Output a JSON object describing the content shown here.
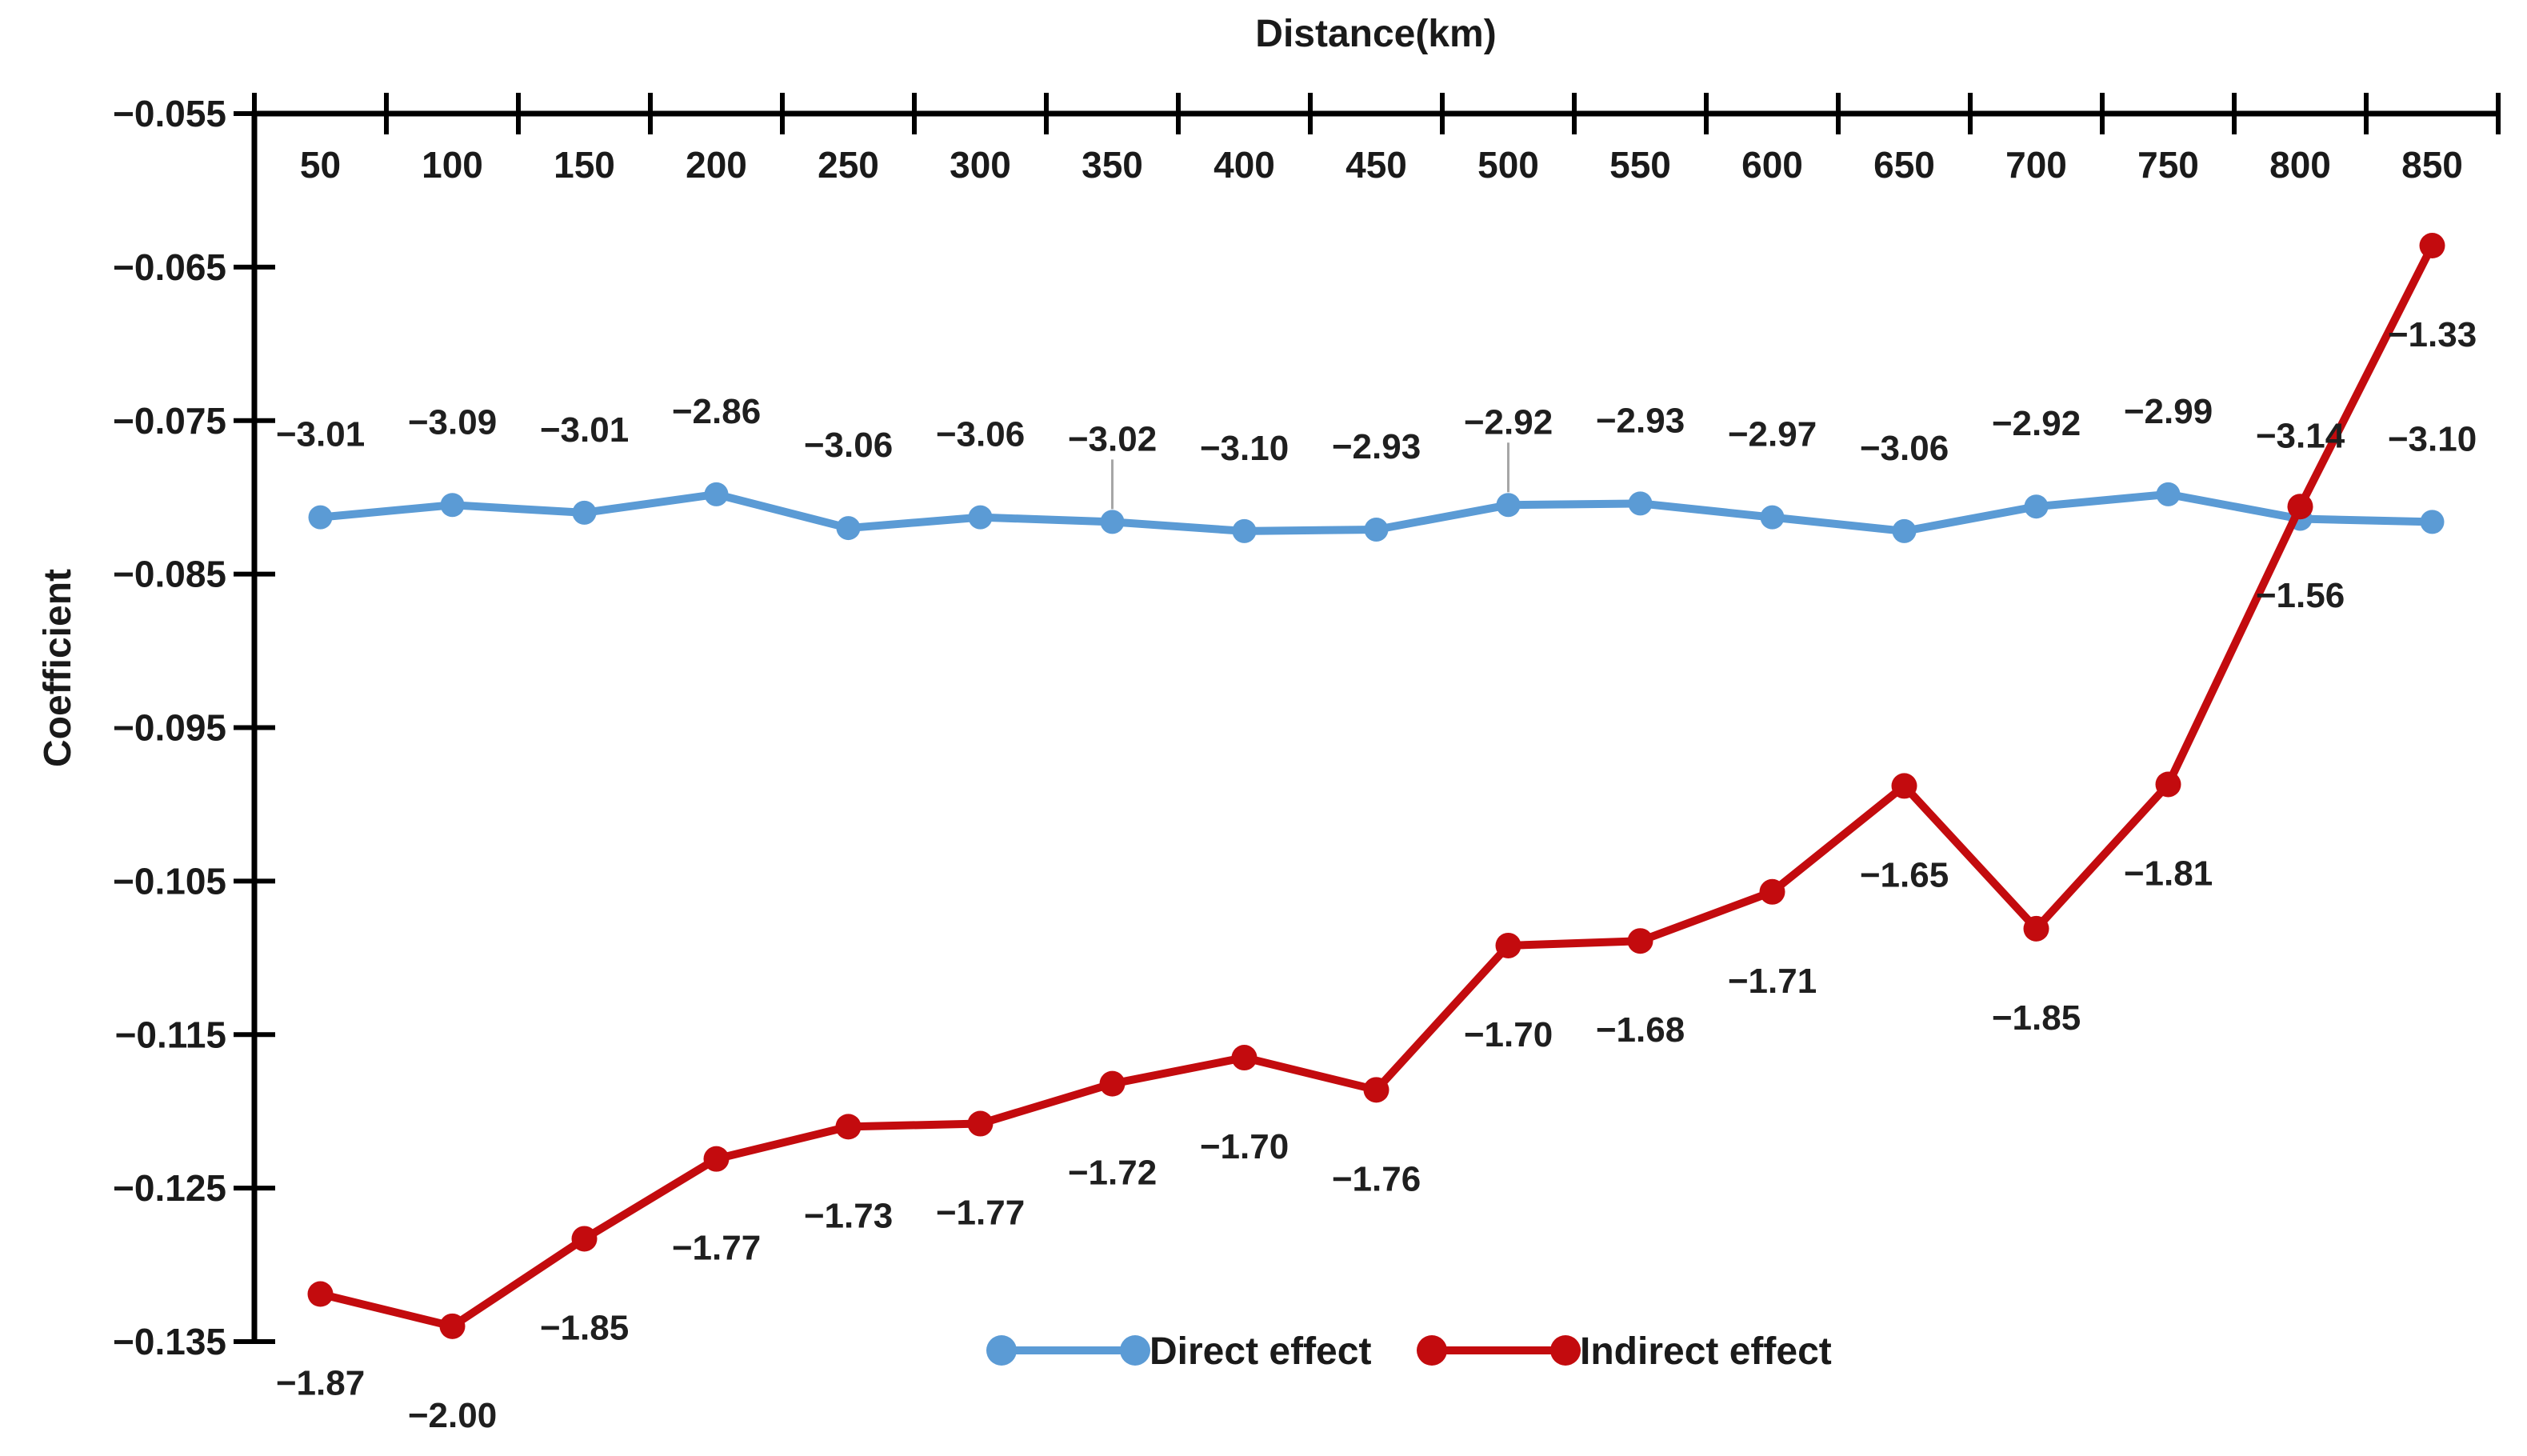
{
  "chart_data": {
    "type": "line",
    "title": "Distance(km)",
    "xlabel": "Distance(km)",
    "ylabel": "Coefficient",
    "x": [
      50,
      100,
      150,
      200,
      250,
      300,
      350,
      400,
      450,
      500,
      550,
      600,
      650,
      700,
      750,
      800,
      850
    ],
    "xtick_labels": [
      "50",
      "100",
      "150",
      "200",
      "250",
      "300",
      "350",
      "400",
      "450",
      "500",
      "550",
      "600",
      "650",
      "700",
      "750",
      "800",
      "850"
    ],
    "ylim": [
      -0.135,
      -0.055
    ],
    "ytick_step": 0.01,
    "ytick_labels": [
      "−0.055",
      "−0.065",
      "−0.075",
      "−0.085",
      "−0.095",
      "−0.105",
      "−0.115",
      "−0.125",
      "−0.135"
    ],
    "grid": false,
    "x_axis_position": "top",
    "legend_position": "bottom-center",
    "series": [
      {
        "name": "Direct effect",
        "color": "#5B9BD5",
        "values": [
          -0.0813,
          -0.0805,
          -0.081,
          -0.0798,
          -0.082,
          -0.0813,
          -0.0816,
          -0.0822,
          -0.0821,
          -0.0805,
          -0.0804,
          -0.0813,
          -0.0822,
          -0.0806,
          -0.0798,
          -0.0814,
          -0.0816
        ],
        "point_labels": [
          "−3.01",
          "−3.09",
          "−3.01",
          "−2.86",
          "−3.06",
          "−3.06",
          "−3.02",
          "−3.10",
          "−2.93",
          "−2.92",
          "−2.93",
          "−2.97",
          "−3.06",
          "−2.92",
          "−2.99",
          "−3.14",
          "−3.10"
        ],
        "label_side": "above",
        "leader_line_categories": [
          350,
          500
        ]
      },
      {
        "name": "Indirect effect",
        "color": "#C30B0E",
        "values": [
          -0.1319,
          -0.134,
          -0.1283,
          -0.1231,
          -0.121,
          -0.1208,
          -0.1182,
          -0.1165,
          -0.1186,
          -0.1092,
          -0.1089,
          -0.1057,
          -0.0988,
          -0.1081,
          -0.0987,
          -0.0806,
          -0.0636
        ],
        "point_labels": [
          "−1.87",
          "−2.00",
          "−1.85",
          "−1.77",
          "−1.73",
          "−1.77",
          "−1.72",
          "−1.70",
          "−1.76",
          "−1.70",
          "−1.68",
          "−1.71",
          "−1.65",
          "−1.85",
          "−1.81",
          "−1.56",
          "−1.33"
        ],
        "label_side": "below",
        "leader_line_categories": []
      }
    ],
    "legend": {
      "items": [
        {
          "label": "Direct effect",
          "color": "#5B9BD5"
        },
        {
          "label": "Indirect effect",
          "color": "#C30B0E"
        }
      ]
    },
    "colors": {
      "axis": "#000000",
      "tick_text": "#1a1a1a",
      "data_label_text": "#1f1f1f",
      "leader_line": "#a6a6a6",
      "background": "#ffffff"
    }
  }
}
